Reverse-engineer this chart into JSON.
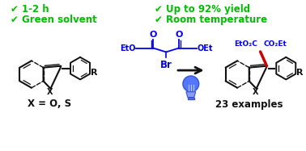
{
  "bg_color": "#ffffff",
  "green_color": "#00bb00",
  "blue_color": "#0000ee",
  "black_color": "#111111",
  "red_color": "#cc0000",
  "check1": "✔ 1-2 h",
  "check2": "✔ Green solvent",
  "check3": "✔ Up to 92% yield",
  "check4": "✔ Room temperature",
  "x_label": "X = O, S",
  "examples_label": "23 examples",
  "reagent_br": "Br",
  "eto_left": "EtO",
  "oet_right": "OEt",
  "o1": "O",
  "o2": "O",
  "eto2c": "EtO₂C",
  "co2et": "CO₂Et",
  "x_sym": "X",
  "r_sym": "R",
  "x_sym2": "X",
  "r_sym2": "R",
  "fig_width": 3.78,
  "fig_height": 1.87,
  "dpi": 100
}
